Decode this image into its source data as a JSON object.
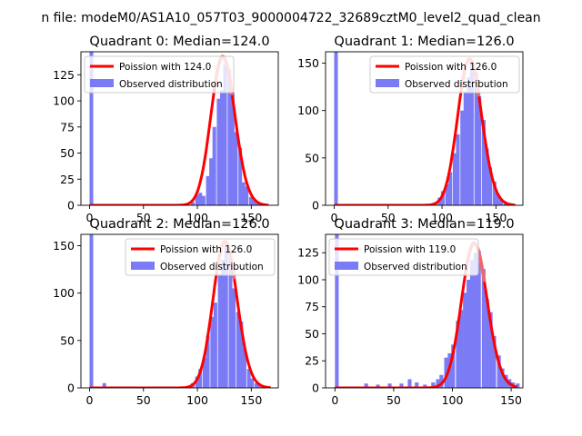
{
  "figure": {
    "suptitle": "n file: modeM0/AS1A10_057T03_9000004722_32689cztM0_level2_quad_clean"
  },
  "style": {
    "hist_color": "#7b7bf6",
    "line_color": "#ff0000",
    "peak_line_color": "#f07878",
    "axis_color": "#000000",
    "legend_border": "#cccccc"
  },
  "chart_data": [
    {
      "type": "bar",
      "title": "Quadrant 0: Median=124.0",
      "xlim": [
        -8,
        175
      ],
      "ylim": [
        0,
        147
      ],
      "xticks": [
        0,
        50,
        100,
        150
      ],
      "yticks": [
        0,
        25,
        50,
        75,
        100,
        125
      ],
      "legend_position": "top-left",
      "legend": [
        "Poission with 124.0",
        "Observed distribution"
      ],
      "line_label": "Poission with 124.0",
      "poisson_mean": 124.0,
      "poisson_scale": 3975,
      "poisson_xrange": [
        0,
        166
      ],
      "hist_label": "Observed distribution",
      "bin_width": 3.4,
      "bins": [
        [
          0,
          147
        ],
        [
          94,
          3
        ],
        [
          98,
          10
        ],
        [
          101,
          12
        ],
        [
          104,
          9
        ],
        [
          108,
          28
        ],
        [
          111,
          45
        ],
        [
          114,
          75
        ],
        [
          118,
          102
        ],
        [
          121,
          110
        ],
        [
          124,
          135
        ],
        [
          128,
          130
        ],
        [
          131,
          108
        ],
        [
          134,
          70
        ],
        [
          138,
          55
        ],
        [
          141,
          22
        ],
        [
          144,
          18
        ],
        [
          148,
          8
        ],
        [
          151,
          5
        ],
        [
          154,
          3
        ],
        [
          158,
          2
        ],
        [
          161,
          1
        ]
      ]
    },
    {
      "type": "bar",
      "title": "Quadrant 1: Median=126.0",
      "xlim": [
        -8,
        175
      ],
      "ylim": [
        0,
        162
      ],
      "xticks": [
        0,
        50,
        100,
        150
      ],
      "yticks": [
        0,
        50,
        100,
        150
      ],
      "legend_position": "top-right",
      "legend": [
        "Poission with 126.0",
        "Observed distribution"
      ],
      "line_label": "Poission with 126.0",
      "poisson_mean": 126.0,
      "poisson_scale": 4340,
      "poisson_xrange": [
        0,
        168
      ],
      "hist_label": "Observed distribution",
      "bin_width": 3.4,
      "bins": [
        [
          0,
          162
        ],
        [
          92,
          3
        ],
        [
          96,
          8
        ],
        [
          99,
          15
        ],
        [
          103,
          22
        ],
        [
          106,
          35
        ],
        [
          110,
          55
        ],
        [
          113,
          75
        ],
        [
          117,
          100
        ],
        [
          120,
          120
        ],
        [
          123,
          135
        ],
        [
          126,
          150
        ],
        [
          130,
          140
        ],
        [
          133,
          115
        ],
        [
          137,
          90
        ],
        [
          140,
          60
        ],
        [
          143,
          40
        ],
        [
          147,
          25
        ],
        [
          150,
          12
        ],
        [
          153,
          6
        ],
        [
          157,
          4
        ],
        [
          160,
          2
        ]
      ]
    },
    {
      "type": "bar",
      "title": "Quadrant 2: Median=126.0",
      "xlim": [
        -8,
        175
      ],
      "ylim": [
        0,
        162
      ],
      "xticks": [
        0,
        50,
        100,
        150
      ],
      "yticks": [
        0,
        50,
        100,
        150
      ],
      "legend_position": "top-right",
      "legend": [
        "Poission with 126.0",
        "Observed distribution"
      ],
      "line_label": "Poission with 126.0",
      "poisson_mean": 126.0,
      "poisson_scale": 4340,
      "poisson_xrange": [
        0,
        168
      ],
      "hist_label": "Observed distribution",
      "bin_width": 3.4,
      "bins": [
        [
          0,
          162
        ],
        [
          12,
          5
        ],
        [
          94,
          5
        ],
        [
          98,
          12
        ],
        [
          101,
          20
        ],
        [
          105,
          32
        ],
        [
          108,
          55
        ],
        [
          112,
          75
        ],
        [
          115,
          90
        ],
        [
          119,
          120
        ],
        [
          122,
          135
        ],
        [
          125,
          150
        ],
        [
          129,
          145
        ],
        [
          132,
          105
        ],
        [
          136,
          80
        ],
        [
          139,
          70
        ],
        [
          142,
          42
        ],
        [
          146,
          20
        ],
        [
          149,
          10
        ],
        [
          153,
          5
        ],
        [
          156,
          3
        ],
        [
          160,
          2
        ]
      ]
    },
    {
      "type": "bar",
      "title": "Quadrant 3: Median=119.0",
      "xlim": [
        -8,
        160
      ],
      "ylim": [
        0,
        142
      ],
      "xticks": [
        0,
        50,
        100,
        150
      ],
      "yticks": [
        0,
        25,
        50,
        75,
        100,
        125
      ],
      "legend_position": "top-left",
      "legend": [
        "Poission with 119.0",
        "Observed distribution"
      ],
      "line_label": "Poission with 119.0",
      "poisson_mean": 119.0,
      "poisson_scale": 3660,
      "poisson_xrange": [
        0,
        155
      ],
      "hist_label": "Observed distribution",
      "bin_width": 3.2,
      "bins": [
        [
          0,
          142
        ],
        [
          25,
          4
        ],
        [
          35,
          3
        ],
        [
          45,
          4
        ],
        [
          55,
          4
        ],
        [
          62,
          8
        ],
        [
          68,
          5
        ],
        [
          75,
          3
        ],
        [
          82,
          5
        ],
        [
          86,
          8
        ],
        [
          89,
          12
        ],
        [
          93,
          28
        ],
        [
          96,
          32
        ],
        [
          99,
          40
        ],
        [
          103,
          62
        ],
        [
          106,
          72
        ],
        [
          109,
          88
        ],
        [
          112,
          100
        ],
        [
          115,
          118
        ],
        [
          118,
          125
        ],
        [
          121,
          127
        ],
        [
          125,
          110
        ],
        [
          128,
          82
        ],
        [
          131,
          70
        ],
        [
          134,
          48
        ],
        [
          138,
          30
        ],
        [
          141,
          18
        ],
        [
          144,
          12
        ],
        [
          147,
          8
        ],
        [
          150,
          5
        ],
        [
          154,
          4
        ]
      ]
    }
  ]
}
